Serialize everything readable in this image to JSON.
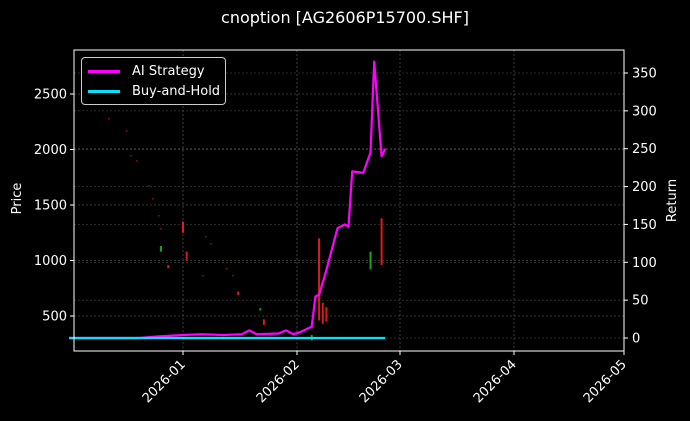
{
  "chart_data": {
    "type": "line",
    "title": "cnoption [AG2606P15700.SHF]",
    "xlabel": "",
    "ylabel_left": "Price",
    "ylabel_right": "Return",
    "x_ticks": [
      "2026-01",
      "2026-02",
      "2026-03",
      "2026-04",
      "2026-05"
    ],
    "y_left_ticks": [
      500,
      1000,
      1500,
      2000,
      2500
    ],
    "y_right_ticks": [
      0,
      50,
      100,
      150,
      200,
      250,
      300,
      350
    ],
    "ylim_left": [
      180,
      2900
    ],
    "ylim_right": [
      -18,
      380
    ],
    "grid": true,
    "legend_position": "upper left",
    "legend": [
      {
        "name": "AI Strategy",
        "color": "#ff00ff"
      },
      {
        "name": "Buy-and-Hold",
        "color": "#00e5ff"
      }
    ],
    "series": [
      {
        "name": "AI Strategy",
        "axis": "right",
        "color": "#ff00ff",
        "points": [
          [
            "2025-12-01",
            0
          ],
          [
            "2025-12-20",
            0
          ],
          [
            "2025-12-25",
            2
          ],
          [
            "2026-01-01",
            4
          ],
          [
            "2026-01-06",
            5
          ],
          [
            "2026-01-12",
            4
          ],
          [
            "2026-01-17",
            5
          ],
          [
            "2026-01-19",
            10
          ],
          [
            "2026-01-21",
            5
          ],
          [
            "2026-01-27",
            6
          ],
          [
            "2026-01-29",
            10
          ],
          [
            "2026-01-31",
            5
          ],
          [
            "2026-02-02",
            8
          ],
          [
            "2026-02-05",
            15
          ],
          [
            "2026-02-06",
            55
          ],
          [
            "2026-02-07",
            57
          ],
          [
            "2026-02-09",
            90
          ],
          [
            "2026-02-12",
            145
          ],
          [
            "2026-02-14",
            150
          ],
          [
            "2026-02-15",
            147
          ],
          [
            "2026-02-16",
            220
          ],
          [
            "2026-02-19",
            218
          ],
          [
            "2026-02-21",
            245
          ],
          [
            "2026-02-22",
            365
          ],
          [
            "2026-02-24",
            240
          ],
          [
            "2026-02-25",
            250
          ]
        ]
      },
      {
        "name": "Buy-and-Hold",
        "axis": "right",
        "color": "#00e5ff",
        "points": [
          [
            "2025-12-01",
            0
          ],
          [
            "2026-02-25",
            0
          ]
        ]
      }
    ],
    "candles_note": "faint red/green OHLC bars on Price axis",
    "candles": [
      {
        "date": "2026-01-01",
        "open": 1350,
        "close": 1250,
        "color": "#ff2020"
      },
      {
        "date": "2026-01-02",
        "open": 1080,
        "close": 1000,
        "color": "#ff2020"
      },
      {
        "date": "2025-12-26",
        "open": 1130,
        "close": 1080,
        "color": "#20c020"
      },
      {
        "date": "2025-12-28",
        "open": 960,
        "close": 930,
        "color": "#ff2020"
      },
      {
        "date": "2026-01-16",
        "open": 720,
        "close": 690,
        "color": "#ff2020"
      },
      {
        "date": "2026-01-23",
        "open": 470,
        "close": 420,
        "color": "#ff2020"
      },
      {
        "date": "2026-01-22",
        "open": 570,
        "close": 550,
        "color": "#20c020"
      },
      {
        "date": "2026-02-07",
        "open": 1200,
        "close": 460,
        "color": "#ff2020"
      },
      {
        "date": "2026-02-08",
        "open": 620,
        "close": 430,
        "color": "#ff2020"
      },
      {
        "date": "2026-02-09",
        "open": 580,
        "close": 450,
        "color": "#ff2020"
      },
      {
        "date": "2026-02-05",
        "open": 330,
        "close": 280,
        "color": "#20c020"
      },
      {
        "date": "2026-02-21",
        "open": 1080,
        "close": 920,
        "color": "#20c020"
      },
      {
        "date": "2026-02-24",
        "open": 1380,
        "close": 960,
        "color": "#ff2020"
      }
    ]
  }
}
